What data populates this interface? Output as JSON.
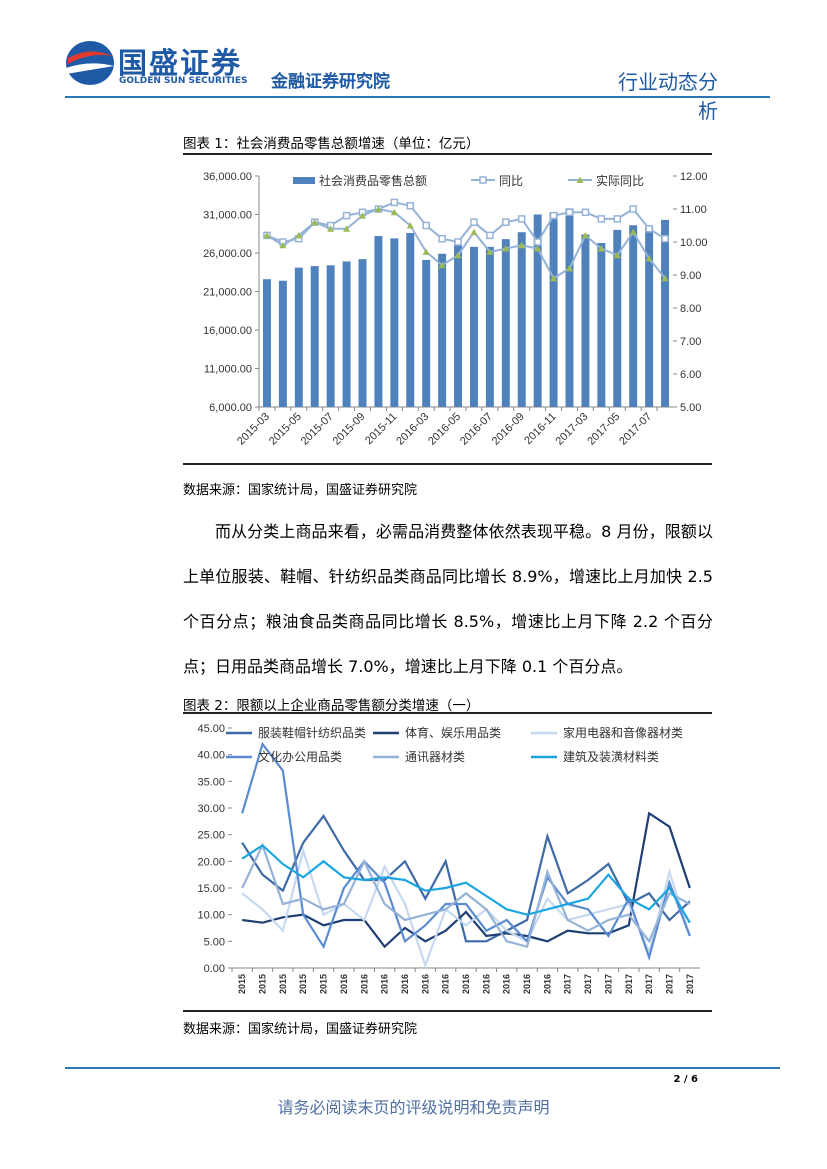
{
  "header": {
    "logo_text": "国盛证券",
    "logo_sub": "GOLDEN SUN SECURITIES",
    "institute": "金融证券研究院",
    "report_type": "行业动态分析"
  },
  "chart_data": [
    {
      "type": "combo",
      "title": "图表 1：社会消费品零售总额增速（单位：亿元）",
      "source": "数据来源：国家统计局，国盛证券研究院",
      "categories": [
        "2015-03",
        null,
        "2015-05",
        null,
        "2015-07",
        null,
        "2015-09",
        null,
        "2015-11",
        null,
        "2016-03",
        null,
        "2016-05",
        null,
        "2016-07",
        null,
        "2016-09",
        null,
        "2016-11",
        null,
        "2017-03",
        null,
        "2017-05",
        null,
        "2017-07",
        null
      ],
      "series": [
        {
          "name": "社会消费品零售总额",
          "type": "bar",
          "color": "#4f81bd",
          "values": [
            22600,
            22400,
            24100,
            24300,
            24400,
            24900,
            25200,
            28200,
            27900,
            28600,
            25100,
            25900,
            27100,
            26800,
            26800,
            27800,
            28700,
            31000,
            31300,
            31800,
            28400,
            27300,
            29000,
            29600,
            29400,
            30300
          ]
        },
        {
          "name": "同比",
          "type": "line",
          "axis": "y2",
          "color": "#95b3d7",
          "marker": "square",
          "values": [
            10.2,
            10.0,
            10.1,
            10.6,
            10.5,
            10.8,
            10.9,
            11.0,
            11.2,
            11.1,
            10.5,
            10.1,
            10.0,
            10.6,
            10.2,
            10.6,
            10.7,
            10.0,
            10.8,
            10.9,
            10.9,
            10.7,
            10.7,
            11.0,
            10.4,
            10.1
          ]
        },
        {
          "name": "实际同比",
          "type": "line",
          "axis": "y2",
          "color": "#95b3d7",
          "marker": "triangle",
          "marker_color": "#9bbb59",
          "values": [
            10.2,
            9.9,
            10.2,
            10.6,
            10.4,
            10.4,
            10.8,
            11.0,
            10.9,
            10.5,
            9.7,
            9.3,
            9.6,
            10.3,
            9.7,
            9.8,
            9.9,
            9.8,
            8.9,
            9.2,
            10.2,
            9.8,
            9.6,
            10.3,
            9.5,
            8.9
          ]
        }
      ],
      "ylim": [
        6000,
        36000
      ],
      "yticks": [
        {
          "value": 6000,
          "label": "6,000.00"
        },
        {
          "value": 11000,
          "label": "11,000.00"
        },
        {
          "value": 16000,
          "label": "16,000.00"
        },
        {
          "value": 21000,
          "label": "21,000.00"
        },
        {
          "value": 26000,
          "label": "26,000.00"
        },
        {
          "value": 31000,
          "label": "31,000.00"
        },
        {
          "value": 36000,
          "label": "36,000.00"
        }
      ],
      "y2lim": [
        5,
        12
      ],
      "y2ticks": [
        {
          "value": 5,
          "label": "5.00"
        },
        {
          "value": 6,
          "label": "6.00"
        },
        {
          "value": 7,
          "label": "7.00"
        },
        {
          "value": 8,
          "label": "8.00"
        },
        {
          "value": 9,
          "label": "9.00"
        },
        {
          "value": 10,
          "label": "10.00"
        },
        {
          "value": 11,
          "label": "11.00"
        },
        {
          "value": 12,
          "label": "12.00"
        }
      ],
      "grid": false
    },
    {
      "type": "line",
      "title": "图表 2：限额以上企业商品零售额分类增速（一）",
      "source": "数据来源：国家统计局，国盛证券研究院",
      "categories": [
        "2015",
        "2015",
        "2015",
        "2015",
        "2015",
        "2016",
        "2016",
        "2016",
        "2016",
        "2016",
        "2016",
        "2016",
        "2016",
        "2016",
        "2016",
        "2016",
        "2017",
        "2017",
        "2017",
        "2017",
        "2017",
        "2017",
        "2017"
      ],
      "series": [
        {
          "name": "服装鞋帽针纺织品类",
          "color": "#3f6aa8",
          "values": [
            23.5,
            17.5,
            14.5,
            23.5,
            28.5,
            22,
            16.5,
            16.5,
            20,
            13,
            20,
            5,
            5,
            7,
            9,
            24.7,
            14,
            16.5,
            19.5,
            12,
            14,
            9,
            12.5
          ]
        },
        {
          "name": "体育、娱乐用品类",
          "color": "#1f3f73",
          "values": [
            9,
            8.5,
            9.5,
            10,
            8,
            9,
            9,
            4,
            7.5,
            5,
            7,
            10.5,
            6,
            6.5,
            6,
            5,
            7,
            6.5,
            6.5,
            8,
            29,
            26.5,
            15
          ]
        },
        {
          "name": "家用电器和音像器材类",
          "color": "#c6d9f1",
          "values": [
            14,
            11,
            7,
            22,
            10,
            12,
            9,
            19,
            12,
            0.5,
            11,
            8,
            11,
            7,
            5,
            13,
            9,
            10,
            11,
            12,
            3,
            18,
            6
          ]
        },
        {
          "name": "文化办公用品类",
          "color": "#5b8bd0",
          "values": [
            29,
            42,
            37,
            10,
            4,
            15,
            20,
            16,
            5,
            8,
            12,
            12,
            7,
            9,
            5,
            17,
            12,
            11,
            6,
            13,
            2,
            16,
            6
          ]
        },
        {
          "name": "通讯器材类",
          "color": "#95b3d7",
          "values": [
            15,
            23,
            12,
            13,
            11,
            12,
            20,
            12,
            9,
            10,
            11,
            14,
            11,
            5,
            4,
            18,
            9,
            7,
            9,
            10,
            5,
            14,
            12
          ]
        },
        {
          "name": "建筑及装潢材料类",
          "color": "#1ca6e0",
          "values": [
            20.5,
            23,
            19.5,
            17,
            20,
            17,
            16.5,
            17,
            16.5,
            14.5,
            15,
            16,
            13.5,
            11,
            10,
            11,
            12,
            13,
            17.5,
            13,
            11,
            15,
            8.5
          ]
        }
      ],
      "ylim": [
        0,
        45
      ],
      "yticks": [
        {
          "value": 0,
          "label": "0.00"
        },
        {
          "value": 5,
          "label": "5.00"
        },
        {
          "value": 10,
          "label": "10.00"
        },
        {
          "value": 15,
          "label": "15.00"
        },
        {
          "value": 20,
          "label": "20.00"
        },
        {
          "value": 25,
          "label": "25.00"
        },
        {
          "value": 30,
          "label": "30.00"
        },
        {
          "value": 35,
          "label": "35.00"
        },
        {
          "value": 40,
          "label": "40.00"
        },
        {
          "value": 45,
          "label": "45.00"
        }
      ],
      "grid": false
    }
  ],
  "paragraph": "而从分类上商品来看，必需品消费整体依然表现平稳。8 月份，限额以上单位服装、鞋帽、针纺织品类商品同比增长 8.9%，增速比上月加快 2.5 个百分点；粮油食品类商品同比增长 8.5%，增速比上月下降 2.2 个百分点；日用品类商品增长 7.0%，增速比上月下降 0.1 个百分点。",
  "page_number": "2 / 6",
  "footer": "请务必阅读末页的评级说明和免责声明"
}
